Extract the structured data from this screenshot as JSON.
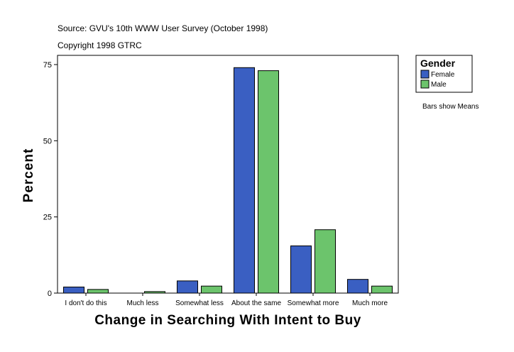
{
  "header": {
    "source": "Source: GVU's 10th WWW User Survey (October 1998)",
    "copyright": "Copyright 1998 GTRC"
  },
  "legend": {
    "title": "Gender",
    "items": [
      "Female",
      "Male"
    ]
  },
  "note": "Bars show Means",
  "colors": {
    "female": "#3a5fc2",
    "male": "#6cc46c"
  },
  "chart_data": {
    "type": "bar",
    "xlabel": "Change in Searching With Intent to Buy",
    "ylabel": "Percent",
    "ylim": [
      0,
      75
    ],
    "yticks": [
      0,
      25,
      50,
      75
    ],
    "grid": false,
    "legend_position": "right",
    "categories": [
      "I don't do this",
      "Much less",
      "Somewhat less",
      "About the same",
      "Somewhat more",
      "Much more"
    ],
    "series": [
      {
        "name": "Female",
        "values": [
          2.0,
          0.0,
          4.0,
          74.0,
          15.5,
          4.5
        ]
      },
      {
        "name": "Male",
        "values": [
          1.2,
          0.5,
          2.3,
          73.0,
          20.8,
          2.3
        ]
      }
    ]
  }
}
